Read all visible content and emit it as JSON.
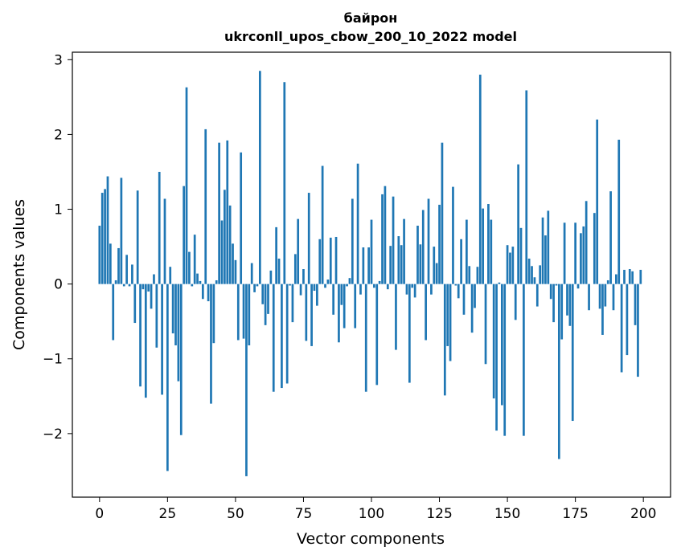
{
  "chart_data": {
    "type": "bar",
    "title": "байрон",
    "subtitle": "ukrconll_upos_cbow_200_10_2022 model",
    "xlabel": "Vector components",
    "ylabel": "Components values",
    "xlim": [
      -10,
      210
    ],
    "ylim": [
      -2.85,
      3.1
    ],
    "xticks": [
      0,
      25,
      50,
      75,
      100,
      125,
      150,
      175,
      200
    ],
    "yticks": [
      -2,
      -1,
      0,
      1,
      2,
      3
    ],
    "xtick_labels": [
      "0",
      "25",
      "50",
      "75",
      "100",
      "125",
      "150",
      "175",
      "200"
    ],
    "ytick_labels": [
      "−2",
      "−1",
      "0",
      "1",
      "2",
      "3"
    ],
    "bar_color": "#1f77b4",
    "grid": false,
    "values": [
      0.78,
      1.22,
      1.27,
      1.44,
      0.54,
      -0.75,
      0.05,
      0.48,
      1.42,
      -0.03,
      0.39,
      -0.03,
      0.26,
      -0.52,
      1.25,
      -1.37,
      -0.07,
      -1.52,
      -0.1,
      -0.33,
      0.13,
      -0.85,
      1.5,
      -1.48,
      1.14,
      -2.5,
      0.23,
      -0.66,
      -0.82,
      -1.3,
      -2.02,
      1.31,
      2.63,
      0.43,
      -0.03,
      0.66,
      0.14,
      0.04,
      -0.2,
      2.07,
      -0.23,
      -1.6,
      -0.79,
      0.05,
      1.89,
      0.85,
      1.26,
      1.92,
      1.05,
      0.54,
      0.32,
      -0.75,
      1.76,
      -0.73,
      -2.57,
      -0.82,
      0.28,
      -0.11,
      -0.03,
      2.85,
      -0.27,
      -0.55,
      -0.4,
      0.18,
      -1.44,
      0.76,
      0.34,
      -1.39,
      2.7,
      -1.33,
      -0.02,
      -0.51,
      0.4,
      0.87,
      -0.15,
      0.2,
      -0.76,
      1.22,
      -0.83,
      -0.09,
      -0.29,
      0.6,
      1.58,
      -0.05,
      0.06,
      0.62,
      -0.41,
      0.63,
      -0.78,
      -0.28,
      -0.59,
      -0.03,
      0.08,
      1.14,
      -0.59,
      1.61,
      -0.14,
      0.49,
      -1.44,
      0.49,
      0.86,
      -0.05,
      -1.35,
      0.04,
      1.2,
      1.31,
      -0.07,
      0.51,
      1.17,
      -0.88,
      0.64,
      0.52,
      0.87,
      -0.14,
      -1.32,
      -0.05,
      -0.18,
      0.78,
      0.53,
      0.99,
      -0.75,
      1.14,
      -0.14,
      0.5,
      0.28,
      1.06,
      1.89,
      -1.49,
      -0.83,
      -1.03,
      1.3,
      -0.02,
      -0.19,
      0.6,
      -0.41,
      0.86,
      0.24,
      -0.65,
      -0.32,
      0.23,
      2.8,
      1.01,
      -1.07,
      1.07,
      0.86,
      -1.53,
      -1.96,
      0.02,
      -1.62,
      -2.03,
      0.52,
      0.42,
      0.5,
      -0.48,
      1.6,
      0.75,
      -2.03,
      2.59,
      0.34,
      0.24,
      0.09,
      -0.3,
      0.25,
      0.89,
      0.65,
      0.98,
      -0.2,
      -0.51,
      -0.02,
      -2.34,
      -0.74,
      0.82,
      -0.42,
      -0.56,
      -1.83,
      0.82,
      -0.06,
      0.68,
      0.77,
      1.11,
      -0.35,
      0.0,
      0.95,
      2.2,
      -0.33,
      -0.68,
      -0.3,
      0.05,
      1.24,
      -0.35,
      0.13,
      1.93,
      -1.18,
      0.19,
      -0.95,
      0.2,
      0.17,
      -0.55,
      -1.24,
      0.19
    ]
  }
}
